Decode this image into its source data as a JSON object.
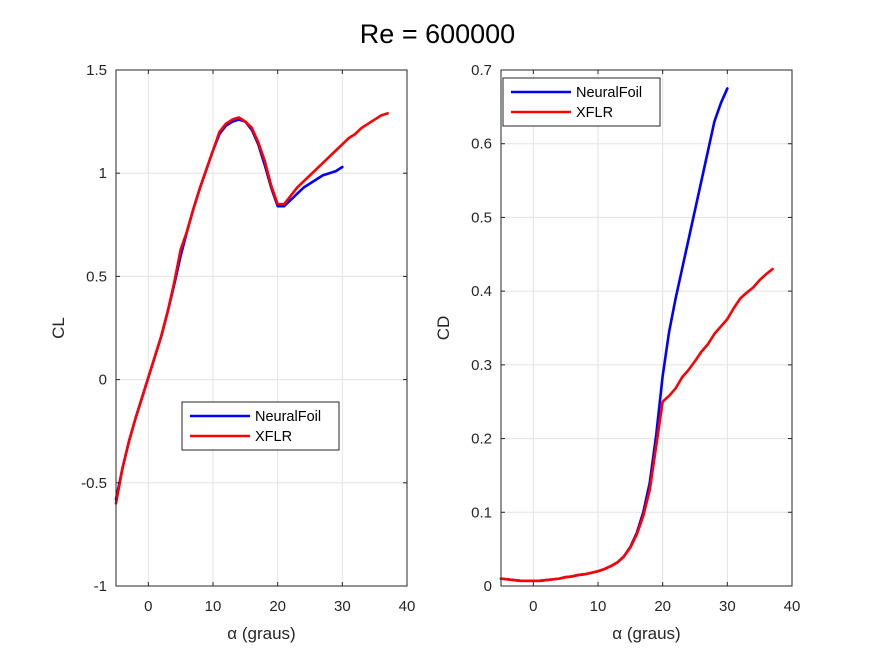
{
  "figure": {
    "suptitle": "Re = 600000"
  },
  "chart_data": [
    {
      "type": "line",
      "title": "",
      "xlabel": "α (graus)",
      "ylabel": "CL",
      "xlim": [
        -5,
        40
      ],
      "ylim": [
        -1,
        1.5
      ],
      "xticks": [
        0,
        10,
        20,
        30,
        40
      ],
      "xtick_labels": [
        "0",
        "10",
        "20",
        "30",
        "40"
      ],
      "yticks": [
        -1,
        -0.5,
        0,
        0.5,
        1,
        1.5
      ],
      "ytick_labels": [
        "-1",
        "-0.5",
        "0",
        "0.5",
        "1",
        "1.5"
      ],
      "grid": true,
      "legend_position": "lower-center",
      "series": [
        {
          "name": "NeuralFoil",
          "color": "#0000ff",
          "x": [
            -5,
            -4,
            -3,
            -2,
            -1,
            0,
            1,
            2,
            3,
            4,
            5,
            6,
            7,
            8,
            9,
            10,
            11,
            12,
            13,
            14,
            15,
            16,
            17,
            18,
            19,
            20,
            21,
            22,
            23,
            24,
            25,
            26,
            27,
            28,
            29,
            30
          ],
          "y": [
            -0.58,
            -0.43,
            -0.3,
            -0.19,
            -0.09,
            0.01,
            0.11,
            0.21,
            0.33,
            0.46,
            0.6,
            0.72,
            0.83,
            0.93,
            1.02,
            1.11,
            1.19,
            1.23,
            1.25,
            1.26,
            1.25,
            1.21,
            1.14,
            1.04,
            0.93,
            0.84,
            0.84,
            0.87,
            0.9,
            0.93,
            0.95,
            0.97,
            0.99,
            1.0,
            1.01,
            1.03
          ]
        },
        {
          "name": "XFLR",
          "color": "#ff0000",
          "x": [
            -5,
            -4,
            -3,
            -2,
            -1,
            0,
            1,
            2,
            3,
            4,
            5,
            6,
            7,
            8,
            9,
            10,
            11,
            12,
            13,
            14,
            15,
            16,
            17,
            18,
            19,
            20,
            21,
            22,
            23,
            24,
            25,
            26,
            27,
            28,
            29,
            30,
            31,
            32,
            33,
            34,
            35,
            36,
            37
          ],
          "y": [
            -0.6,
            -0.43,
            -0.3,
            -0.19,
            -0.09,
            0.01,
            0.11,
            0.21,
            0.33,
            0.47,
            0.63,
            0.72,
            0.83,
            0.93,
            1.02,
            1.11,
            1.2,
            1.24,
            1.26,
            1.27,
            1.25,
            1.22,
            1.15,
            1.06,
            0.94,
            0.85,
            0.85,
            0.89,
            0.93,
            0.96,
            0.99,
            1.02,
            1.05,
            1.08,
            1.11,
            1.14,
            1.17,
            1.19,
            1.22,
            1.24,
            1.26,
            1.28,
            1.29
          ]
        }
      ]
    },
    {
      "type": "line",
      "title": "",
      "xlabel": "α (graus)",
      "ylabel": "CD",
      "xlim": [
        -5,
        40
      ],
      "ylim": [
        0,
        0.7
      ],
      "xticks": [
        0,
        10,
        20,
        30,
        40
      ],
      "xtick_labels": [
        "0",
        "10",
        "20",
        "30",
        "40"
      ],
      "yticks": [
        0,
        0.1,
        0.2,
        0.3,
        0.4,
        0.5,
        0.6,
        0.7
      ],
      "ytick_labels": [
        "0",
        "0.1",
        "0.2",
        "0.3",
        "0.4",
        "0.5",
        "0.6",
        "0.7"
      ],
      "grid": true,
      "legend_position": "top-left",
      "series": [
        {
          "name": "NeuralFoil",
          "color": "#0000ff",
          "x": [
            -5,
            -4,
            -3,
            -2,
            -1,
            0,
            1,
            2,
            3,
            4,
            5,
            6,
            7,
            8,
            9,
            10,
            11,
            12,
            13,
            14,
            15,
            16,
            17,
            18,
            19,
            20,
            21,
            22,
            23,
            24,
            25,
            26,
            27,
            28,
            29,
            30
          ],
          "y": [
            0.01,
            0.009,
            0.008,
            0.007,
            0.007,
            0.007,
            0.007,
            0.008,
            0.009,
            0.01,
            0.012,
            0.013,
            0.015,
            0.016,
            0.018,
            0.02,
            0.023,
            0.027,
            0.032,
            0.04,
            0.053,
            0.072,
            0.1,
            0.14,
            0.205,
            0.285,
            0.345,
            0.39,
            0.43,
            0.47,
            0.51,
            0.55,
            0.59,
            0.63,
            0.655,
            0.675
          ]
        },
        {
          "name": "XFLR",
          "color": "#ff0000",
          "x": [
            -5,
            -4,
            -3,
            -2,
            -1,
            0,
            1,
            2,
            3,
            4,
            5,
            6,
            7,
            8,
            9,
            10,
            11,
            12,
            13,
            14,
            15,
            16,
            17,
            18,
            19,
            20,
            21,
            22,
            23,
            24,
            25,
            26,
            27,
            28,
            29,
            30,
            31,
            32,
            33,
            34,
            35,
            36,
            37
          ],
          "y": [
            0.01,
            0.009,
            0.008,
            0.007,
            0.007,
            0.007,
            0.007,
            0.008,
            0.009,
            0.01,
            0.012,
            0.013,
            0.015,
            0.016,
            0.018,
            0.02,
            0.023,
            0.027,
            0.032,
            0.04,
            0.052,
            0.07,
            0.095,
            0.13,
            0.19,
            0.25,
            0.258,
            0.268,
            0.283,
            0.293,
            0.305,
            0.318,
            0.328,
            0.342,
            0.352,
            0.362,
            0.377,
            0.39,
            0.398,
            0.405,
            0.415,
            0.423,
            0.43
          ]
        }
      ]
    }
  ]
}
